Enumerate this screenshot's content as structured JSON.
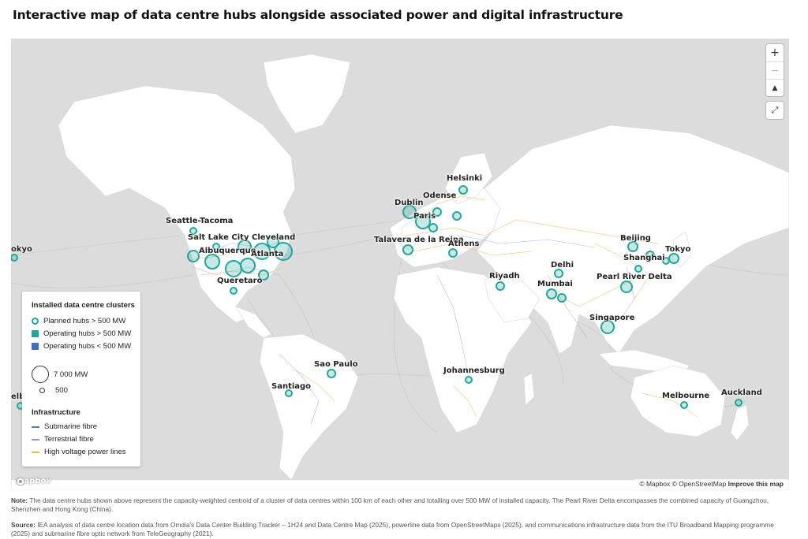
{
  "title": "Interactive map of data centre hubs alongside associated power and digital infrastructure",
  "controls": {
    "zoom_in": "+",
    "zoom_out": "−",
    "compass": "▲",
    "fullscreen": "⤢"
  },
  "legend": {
    "clusters_heading": "Installed data centre clusters",
    "planned": "Planned hubs > 500 MW",
    "operating_large": "Operating hubs > 500 MW",
    "operating_small": "Operating hubs < 500 MW",
    "size_large": "7 000 MW",
    "size_small": "500",
    "infra_heading": "Infrastructure",
    "submarine": "Submarine fibre",
    "terrestrial": "Terrestrial fibre",
    "power": "High voltage power lines"
  },
  "colors": {
    "teal": "#20a89a",
    "blue": "#3f6fc4",
    "submarine": "#4e7fc0",
    "terrestrial": "#a78be0",
    "power": "#e8b65a",
    "land": "#ffffff",
    "water": "#dcdcdc"
  },
  "cities": [
    {
      "name": "Helsinki",
      "kind": "planned"
    },
    {
      "name": "Odense",
      "kind": "planned"
    },
    {
      "name": "Dublin",
      "kind": "operating"
    },
    {
      "name": "Paris",
      "kind": "operating"
    },
    {
      "name": "Talavera de la Reina",
      "kind": "planned"
    },
    {
      "name": "Athens",
      "kind": "planned"
    },
    {
      "name": "Seattle-Tacoma",
      "kind": "operating"
    },
    {
      "name": "Salt Lake City",
      "kind": "planned"
    },
    {
      "name": "Cleveland",
      "kind": "planned"
    },
    {
      "name": "Albuquerque",
      "kind": "planned"
    },
    {
      "name": "Atlanta",
      "kind": "operating"
    },
    {
      "name": "Queretaro",
      "kind": "operating"
    },
    {
      "name": "Riyadh",
      "kind": "planned"
    },
    {
      "name": "Delhi",
      "kind": "planned"
    },
    {
      "name": "Mumbai",
      "kind": "operating"
    },
    {
      "name": "Beijing",
      "kind": "operating"
    },
    {
      "name": "Shanghai",
      "kind": "operating"
    },
    {
      "name": "Tokyo",
      "kind": "operating"
    },
    {
      "name": "Pearl River Delta",
      "kind": "operating"
    },
    {
      "name": "Singapore",
      "kind": "operating"
    },
    {
      "name": "Sao Paulo",
      "kind": "operating"
    },
    {
      "name": "Santiago",
      "kind": "operating"
    },
    {
      "name": "Johannesburg",
      "kind": "planned"
    },
    {
      "name": "Melbourne",
      "kind": "operating"
    },
    {
      "name": "Auckland",
      "kind": "planned"
    },
    {
      "name": "okyo",
      "kind": "operating"
    },
    {
      "name": "elbo",
      "kind": "operating"
    }
  ],
  "attribution": {
    "mapbox": "© Mapbox",
    "osm": "© OpenStreetMap",
    "improve": "Improve this map"
  },
  "logo": "mapbox",
  "note": {
    "label": "Note:",
    "text": " The data centre hubs shown above represent the capacity-weighted centroid of a cluster of data centres within 100 km of each other and totalling over 500 MW of installed capacity. The Pearl River Delta encompasses the combined capacity of Guangzhou, Shenzhen and Hong Kong (China)."
  },
  "source": {
    "label": "Source:",
    "text": " IEA analysis of data centre location data from Omdia's Data Center Building Tracker – 1H24 and Data Centre Map (2025), powerline data from OpenStreetMaps (2025), and communications infrastructure data from the ITU Broadband Mapping programme (2025) and submarine fibre optic network from TeleGeography (2021)."
  }
}
